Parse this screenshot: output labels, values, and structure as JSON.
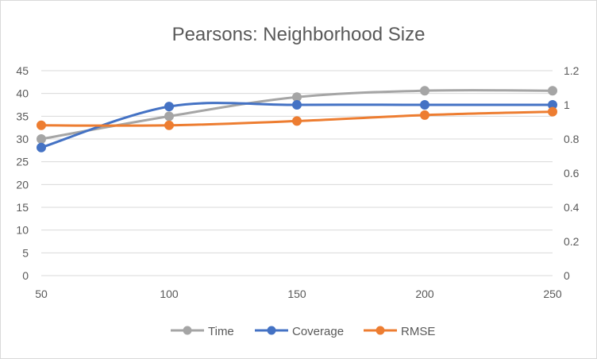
{
  "chart_data": {
    "type": "line",
    "title": "Pearsons: Neighborhood Size",
    "x": [
      50,
      100,
      150,
      200,
      250
    ],
    "x_ticks": [
      "50",
      "100",
      "150",
      "200",
      "250"
    ],
    "xlim": [
      50,
      250
    ],
    "y_left_lim": [
      0,
      45
    ],
    "y_left_ticks": [
      "0",
      "5",
      "10",
      "15",
      "20",
      "25",
      "30",
      "35",
      "40",
      "45"
    ],
    "y_right_lim": [
      0,
      1.2
    ],
    "y_right_ticks": [
      "0",
      "0.2",
      "0.4",
      "0.6",
      "0.8",
      "1",
      "1.2"
    ],
    "grid": true,
    "legend_position": "bottom",
    "series": [
      {
        "name": "Time",
        "axis": "left",
        "color": "#a5a5a5",
        "values": [
          30,
          35,
          39.2,
          40.6,
          40.6
        ]
      },
      {
        "name": "Coverage",
        "axis": "right",
        "color": "#4472c4",
        "values": [
          0.75,
          0.99,
          1.0,
          1.0,
          1.0
        ]
      },
      {
        "name": "RMSE",
        "axis": "right",
        "color": "#ed7d31",
        "values": [
          0.88,
          0.88,
          0.905,
          0.94,
          0.96
        ]
      }
    ]
  }
}
